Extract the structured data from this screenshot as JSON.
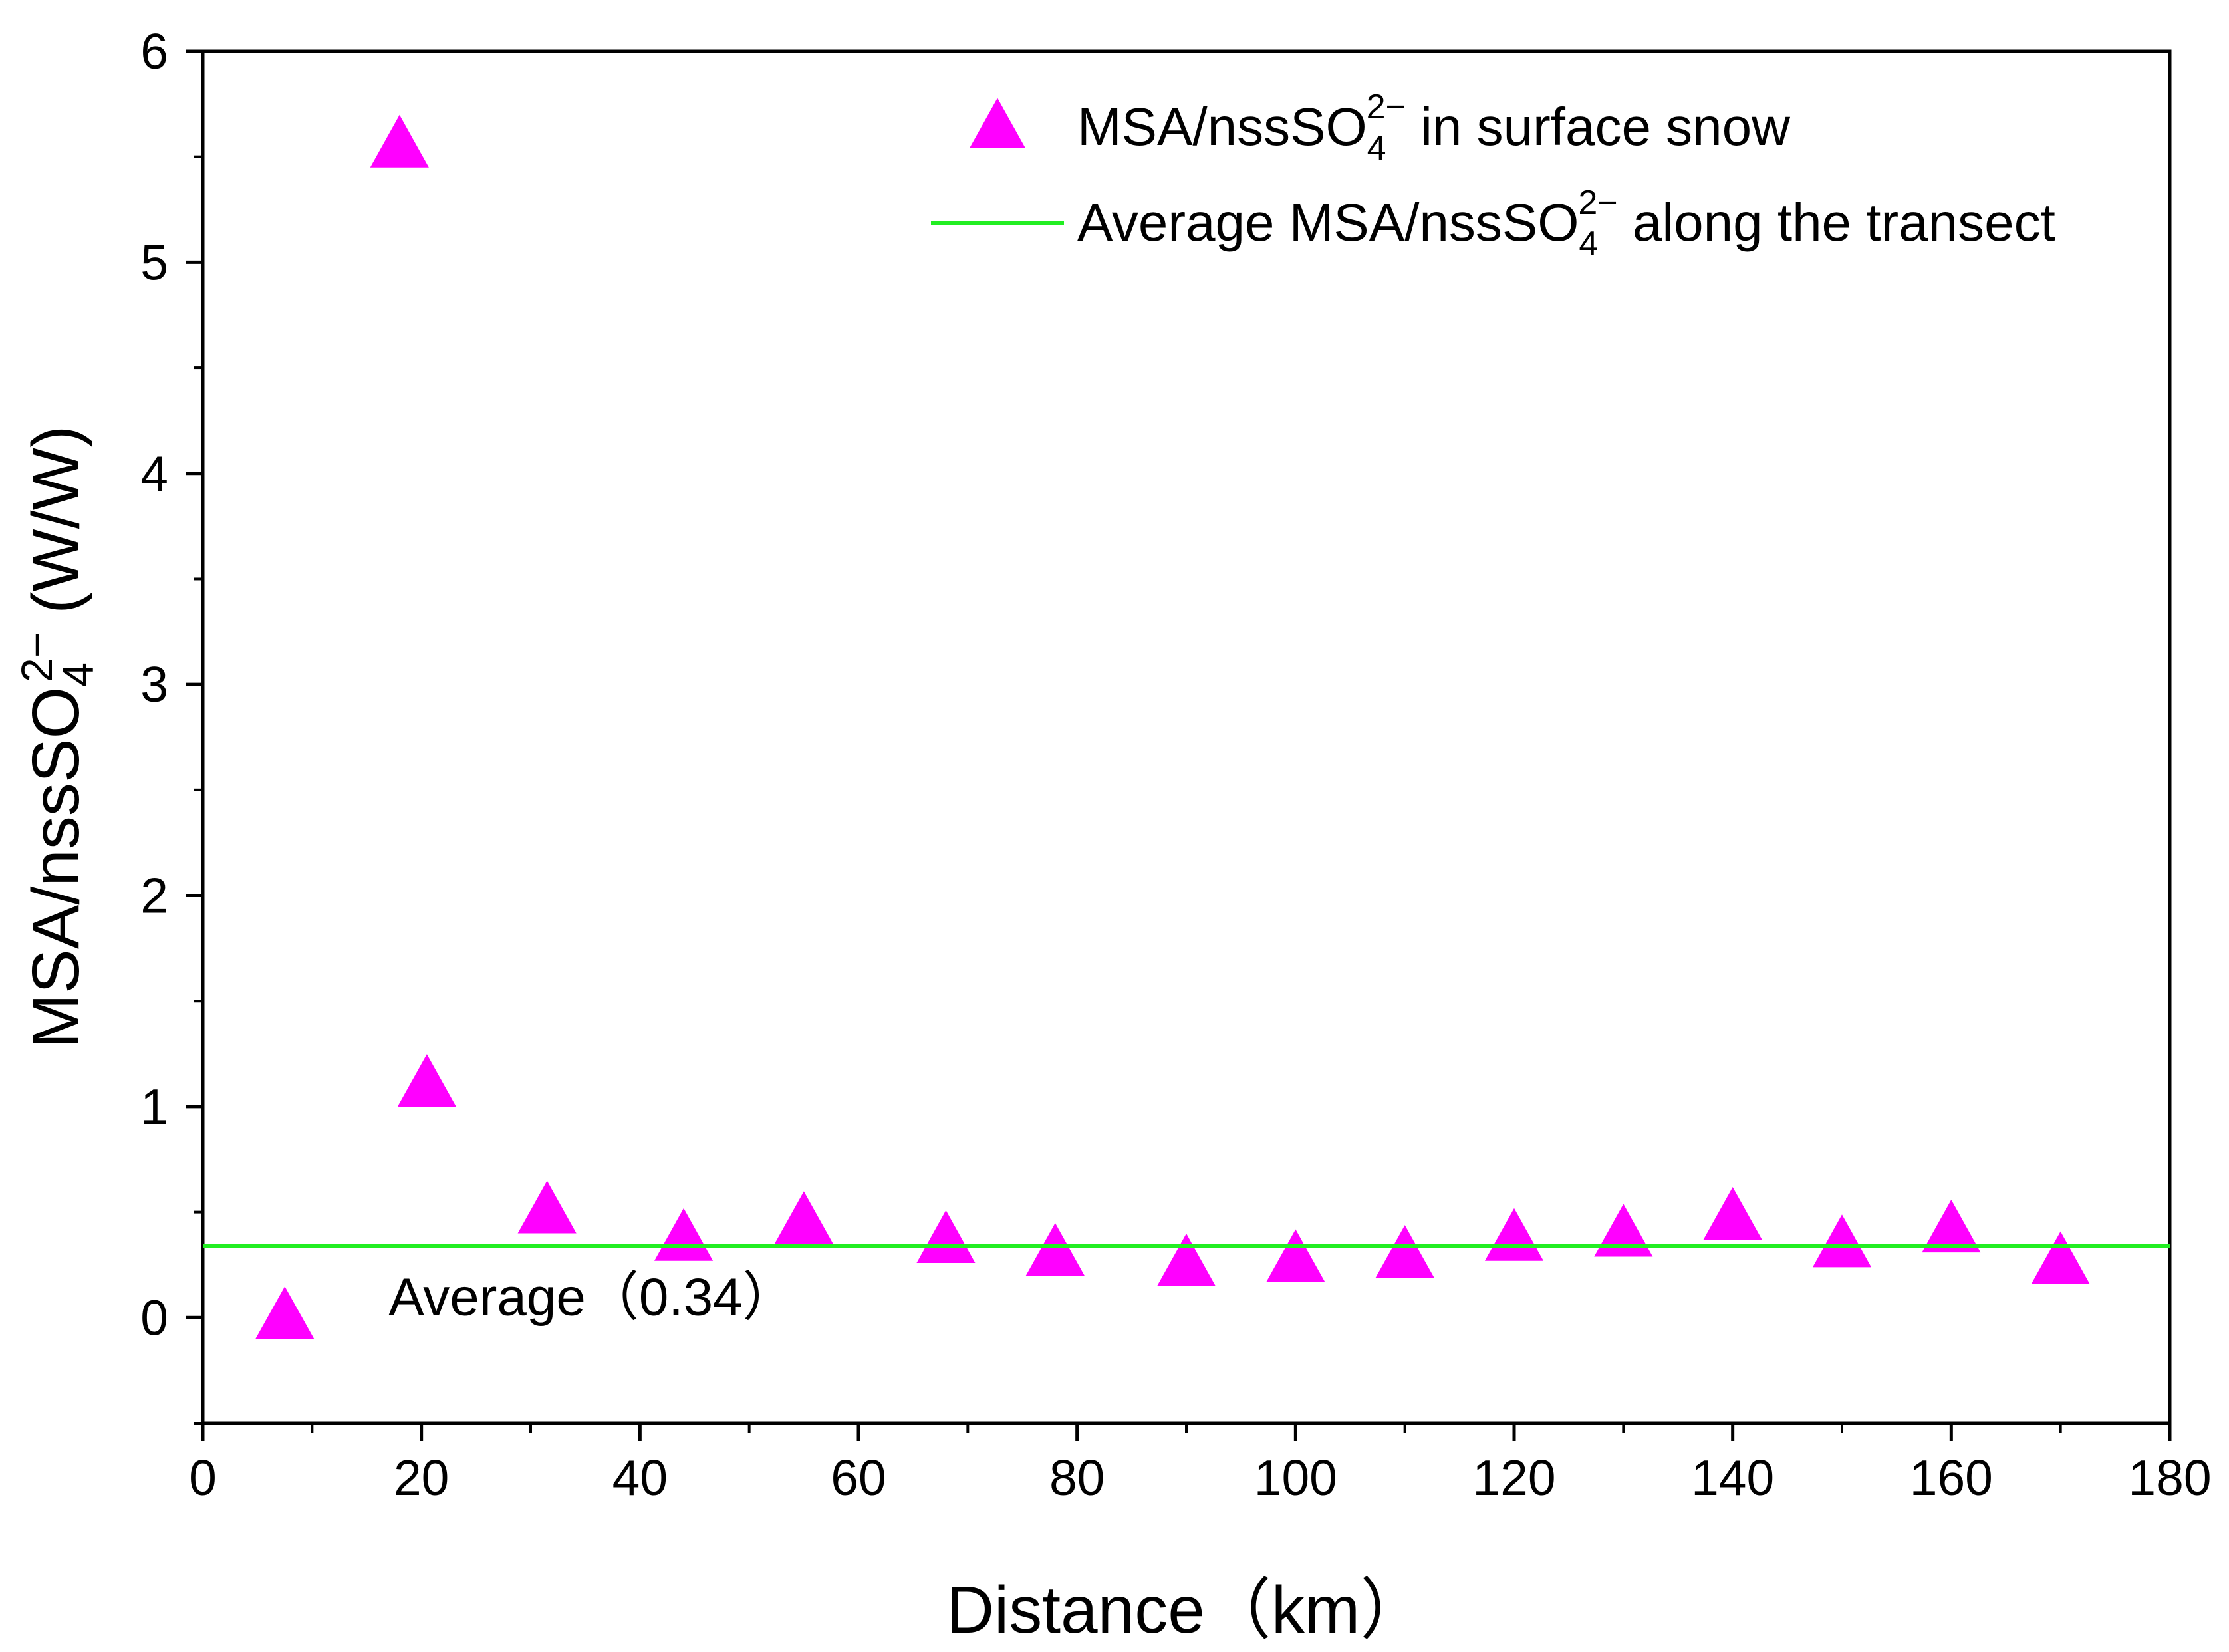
{
  "chart_data": {
    "type": "scatter",
    "title": "",
    "xlabel": "Distance（km）",
    "ylabel": {
      "prefix": "MSA/nssSO",
      "subscript": "4",
      "superscript": "2−",
      "suffix": " (W/W)"
    },
    "xlim": [
      0,
      180
    ],
    "ylim": [
      -0.5,
      6
    ],
    "xticks": [
      0,
      20,
      40,
      60,
      80,
      100,
      120,
      140,
      160,
      180
    ],
    "yticks": [
      0,
      1,
      2,
      3,
      4,
      5,
      6
    ],
    "grid": false,
    "legend_position": "top-right",
    "series": [
      {
        "name": "MSA/nssSO4 2− in surface snow",
        "kind": "scatter",
        "marker": "triangle",
        "color": "#ff00ff",
        "legend": {
          "prefix": "MSA/nssSO",
          "subscript": "4",
          "superscript": "2−",
          "suffix": " in surface snow"
        },
        "points": [
          {
            "x": 7.5,
            "y": 0.0
          },
          {
            "x": 18,
            "y": 5.55
          },
          {
            "x": 20.5,
            "y": 1.1
          },
          {
            "x": 31.5,
            "y": 0.5
          },
          {
            "x": 44,
            "y": 0.37
          },
          {
            "x": 55,
            "y": 0.45
          },
          {
            "x": 68,
            "y": 0.36
          },
          {
            "x": 78,
            "y": 0.3
          },
          {
            "x": 90,
            "y": 0.25
          },
          {
            "x": 100,
            "y": 0.27
          },
          {
            "x": 110,
            "y": 0.29
          },
          {
            "x": 120,
            "y": 0.37
          },
          {
            "x": 130,
            "y": 0.39
          },
          {
            "x": 140,
            "y": 0.47
          },
          {
            "x": 150,
            "y": 0.34
          },
          {
            "x": 160,
            "y": 0.41
          },
          {
            "x": 170,
            "y": 0.26
          }
        ]
      },
      {
        "name": "Average MSA/nssSO4 2− along the transect",
        "kind": "hline",
        "color": "#22ee22",
        "y": 0.34,
        "legend": {
          "prefix": "Average MSA/nssSO",
          "subscript": "4",
          "superscript": "2−",
          "suffix": " along the transect"
        }
      }
    ],
    "annotations": [
      {
        "text": "Average（0.34）",
        "x": 17,
        "y": 0.1
      }
    ]
  }
}
